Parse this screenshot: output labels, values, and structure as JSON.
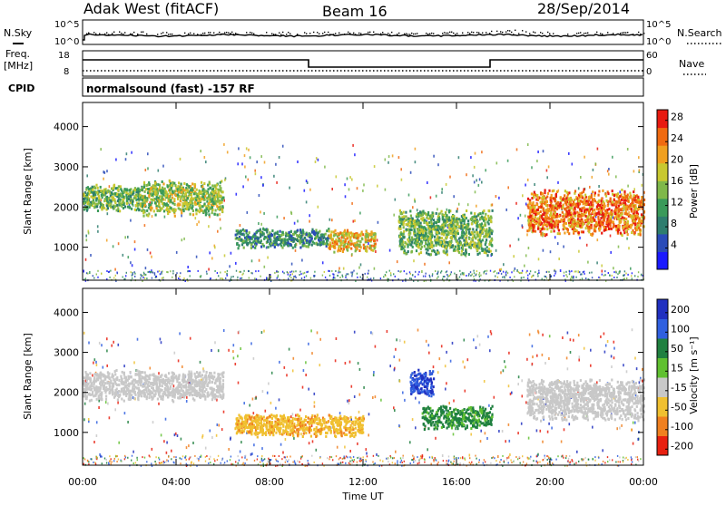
{
  "header": {
    "station": "Adak West (fitACF)",
    "beam": "Beam 16",
    "date": "28/Sep/2014"
  },
  "status_panels": {
    "nsky_label": "N.Sky",
    "nsearch_label": "N.Search",
    "nsky_ticks": [
      "10^5",
      "10^0"
    ],
    "nsearch_ticks": [
      "10^5",
      "10^0"
    ],
    "freq_label_line1": "Freq.",
    "freq_label_line2": "[MHz]",
    "freq_ticks": [
      "18",
      "8"
    ],
    "nave_label": "Nave",
    "nave_ticks": [
      "60",
      "0"
    ],
    "cpid_label": "CPID",
    "cpid_text": "normalsound (fast) -157 RF"
  },
  "chart_data": [
    {
      "type": "heatmap",
      "title": "",
      "xlabel": "Time UT",
      "ylabel": "Slant Range [km]",
      "x_ticks": [
        "00:00",
        "04:00",
        "08:00",
        "12:00",
        "16:00",
        "20:00",
        "00:00"
      ],
      "xlim_hours": [
        0,
        24
      ],
      "y_ticks": [
        1000,
        2000,
        3000,
        4000
      ],
      "ylim": [
        180,
        4600
      ],
      "colorbar": {
        "label": "Power [dB]",
        "ticks": [
          4,
          8,
          12,
          16,
          20,
          24,
          28
        ],
        "range": [
          0,
          30
        ],
        "colors": [
          "#1a1aff",
          "#2a4bb8",
          "#2e7d6e",
          "#3a9a5a",
          "#7fb84a",
          "#c8c830",
          "#f0a020",
          "#f06a10",
          "#e81a10"
        ]
      },
      "regions": [
        {
          "t_start": 0.0,
          "t_end": 2.5,
          "range_low": 1900,
          "range_high": 2600,
          "level": 14
        },
        {
          "t_start": 2.5,
          "t_end": 6.0,
          "range_low": 1800,
          "range_high": 2700,
          "level": 16
        },
        {
          "t_start": 6.5,
          "t_end": 10.5,
          "range_low": 1000,
          "range_high": 1500,
          "level": 10
        },
        {
          "t_start": 10.5,
          "t_end": 12.5,
          "range_low": 900,
          "range_high": 1500,
          "level": 20
        },
        {
          "t_start": 13.5,
          "t_end": 17.5,
          "range_low": 800,
          "range_high": 2000,
          "level": 14
        },
        {
          "t_start": 19.0,
          "t_end": 24.0,
          "range_low": 1300,
          "range_high": 2500,
          "level": 24
        }
      ]
    },
    {
      "type": "heatmap",
      "title": "",
      "xlabel": "Time UT",
      "ylabel": "Slant Range [km]",
      "x_ticks": [
        "00:00",
        "04:00",
        "08:00",
        "12:00",
        "16:00",
        "20:00",
        "00:00"
      ],
      "xlim_hours": [
        0,
        24
      ],
      "y_ticks": [
        1000,
        2000,
        3000,
        4000
      ],
      "ylim": [
        180,
        4600
      ],
      "colorbar": {
        "label": "Velocity [m s⁻¹]",
        "ticks": [
          200,
          100,
          50,
          15,
          -15,
          -50,
          -100,
          -200
        ],
        "colors": [
          "#2030c0",
          "#3060e0",
          "#208040",
          "#60c030",
          "#c8c8c8",
          "#f0c030",
          "#f08020",
          "#e82010"
        ]
      },
      "regions": [
        {
          "t_start": 0.0,
          "t_end": 6.0,
          "range_low": 1800,
          "range_high": 2600,
          "level": 0
        },
        {
          "t_start": 6.5,
          "t_end": 12.0,
          "range_low": 900,
          "range_high": 1500,
          "level": -40
        },
        {
          "t_start": 14.0,
          "t_end": 15.0,
          "range_low": 1900,
          "range_high": 2600,
          "level": 150
        },
        {
          "t_start": 14.5,
          "t_end": 17.5,
          "range_low": 1100,
          "range_high": 1700,
          "level": 40
        },
        {
          "t_start": 19.0,
          "t_end": 24.0,
          "range_low": 1300,
          "range_high": 2400,
          "level": 0
        }
      ]
    }
  ],
  "colors": {
    "axis": "#000000",
    "groundscatter": "#bfbfbf",
    "power_bright": "#e81a10",
    "velocity_orange": "#f0a020"
  }
}
